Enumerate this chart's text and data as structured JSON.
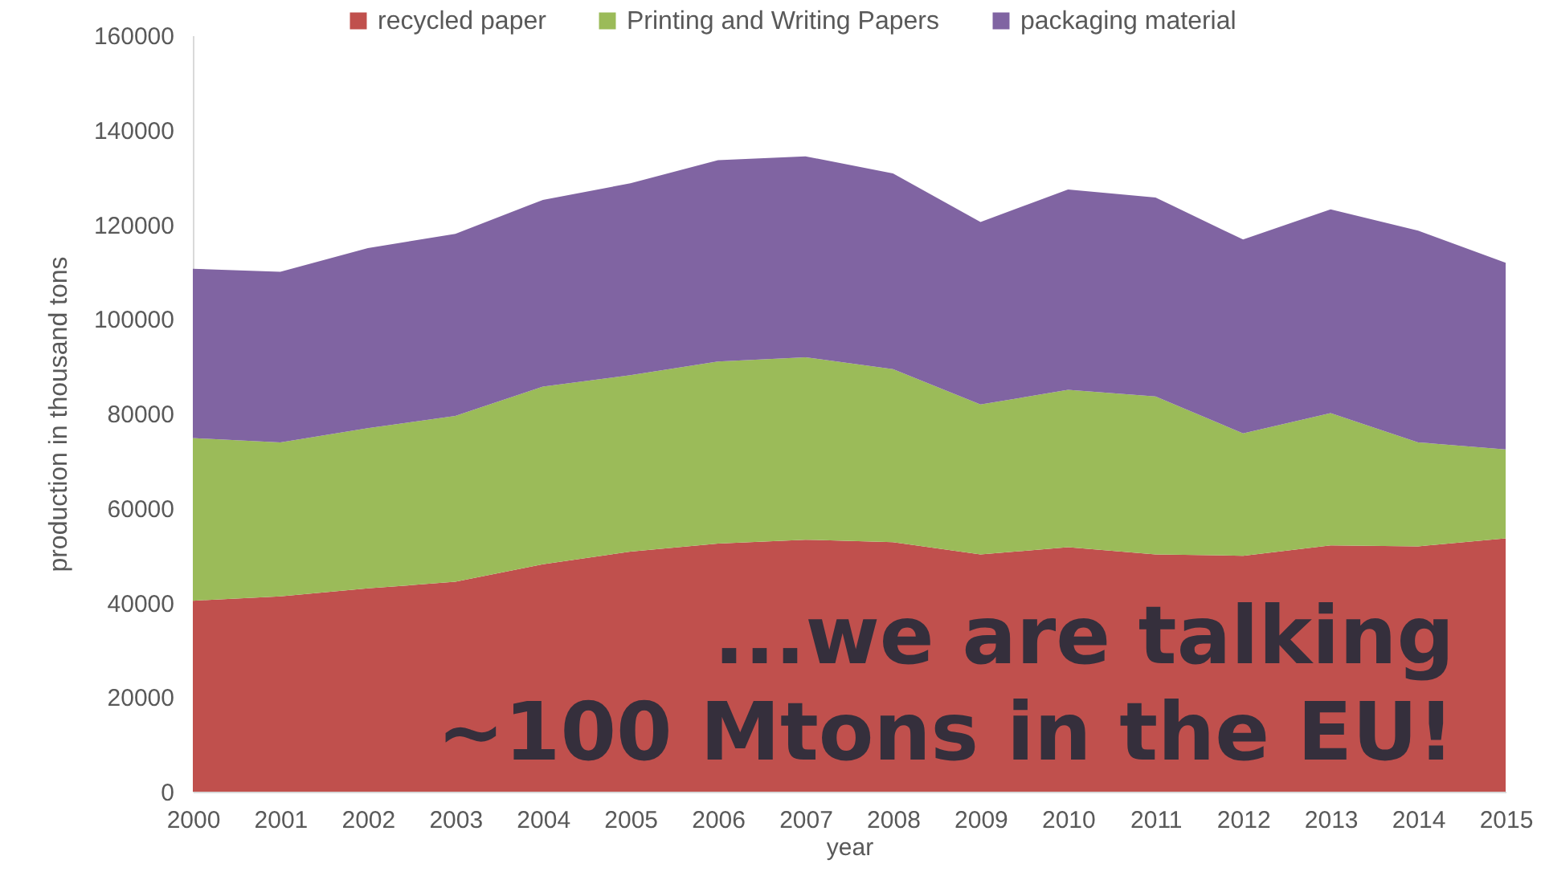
{
  "chart_data": {
    "type": "area",
    "stacked": true,
    "xlabel": "year",
    "ylabel": "production in thousand tons",
    "x": [
      2000,
      2001,
      2002,
      2003,
      2004,
      2005,
      2006,
      2007,
      2008,
      2009,
      2010,
      2011,
      2012,
      2013,
      2014,
      2015
    ],
    "xlim": [
      2000,
      2015
    ],
    "xticks": [
      2000,
      2001,
      2002,
      2003,
      2004,
      2005,
      2006,
      2007,
      2008,
      2009,
      2010,
      2011,
      2012,
      2013,
      2014,
      2015
    ],
    "ylim": [
      0,
      160000
    ],
    "yticks": [
      0,
      20000,
      40000,
      60000,
      80000,
      100000,
      120000,
      140000,
      160000
    ],
    "legend": "top",
    "grid": false,
    "series": [
      {
        "name": "recycled paper",
        "color": "#c0504d",
        "values": [
          40400,
          41300,
          43000,
          44400,
          48100,
          50800,
          52500,
          53300,
          52800,
          50200,
          51700,
          50200,
          49900,
          52100,
          51900,
          53600
        ]
      },
      {
        "name": "Printing and Writing Papers",
        "color": "#9bbb59",
        "values": [
          34400,
          32600,
          33900,
          35100,
          37600,
          37300,
          38500,
          38600,
          36600,
          31700,
          33300,
          33400,
          25900,
          28000,
          22000,
          18800
        ]
      },
      {
        "name": "packaging material",
        "color": "#8064a2",
        "values": [
          35800,
          36100,
          38100,
          38500,
          39500,
          40600,
          42600,
          42500,
          41400,
          38600,
          42400,
          42100,
          41000,
          43100,
          44800,
          39500
        ]
      }
    ],
    "annotations": [
      "...we are talking",
      "~100 Mtons in the EU!"
    ]
  }
}
